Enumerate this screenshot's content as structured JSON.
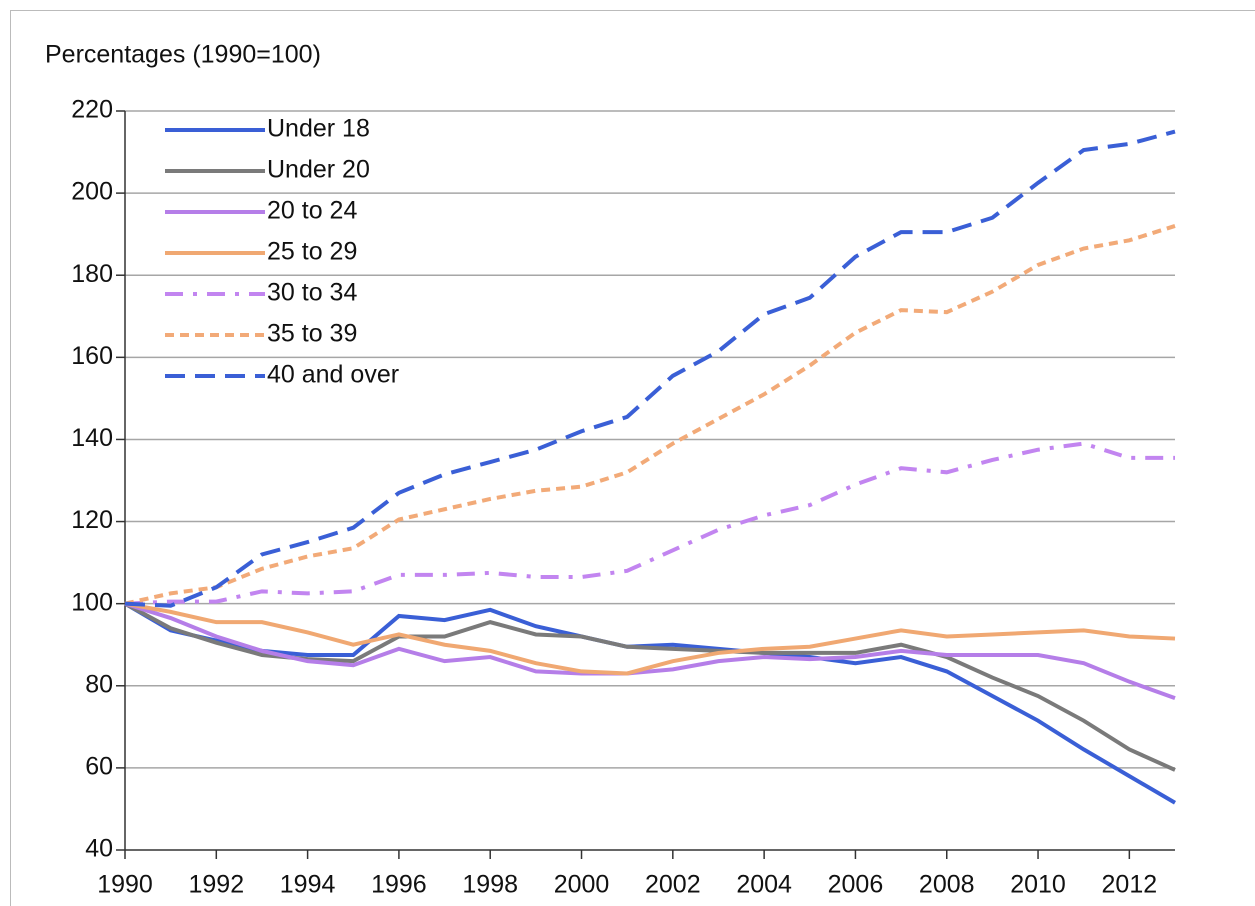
{
  "chart_data": {
    "type": "line",
    "title": "Percentages (1990=100)",
    "x": [
      1990,
      1991,
      1992,
      1993,
      1994,
      1995,
      1996,
      1997,
      1998,
      1999,
      2000,
      2001,
      2002,
      2003,
      2004,
      2005,
      2006,
      2007,
      2008,
      2009,
      2010,
      2011,
      2012,
      2013
    ],
    "xlim": [
      1990,
      2013
    ],
    "xticks": [
      1990,
      1992,
      1994,
      1996,
      1998,
      2000,
      2002,
      2004,
      2006,
      2008,
      2010,
      2012
    ],
    "ylim": [
      40,
      220
    ],
    "yticks": [
      40,
      60,
      80,
      100,
      120,
      140,
      160,
      180,
      200,
      220
    ],
    "grid": true,
    "legend": "top-left",
    "series": [
      {
        "name": "Under 18",
        "color": "#3a5fd6",
        "style": "solid",
        "values": [
          100,
          93.5,
          91,
          88.5,
          87.5,
          87.5,
          97,
          96,
          98.5,
          94.5,
          92,
          89.5,
          90,
          89,
          88,
          87,
          85.5,
          87,
          83.5,
          77.5,
          71.5,
          64.5,
          58,
          51.5
        ]
      },
      {
        "name": "Under 20",
        "color": "#7a7a7a",
        "style": "solid",
        "values": [
          100,
          94,
          90.5,
          87.5,
          86.5,
          86,
          92,
          92,
          95.5,
          92.5,
          92,
          89.5,
          89,
          88.5,
          88,
          88,
          88,
          90,
          87,
          82,
          77.5,
          71.5,
          64.5,
          59.5
        ]
      },
      {
        "name": "20 to 24",
        "color": "#b57ee8",
        "style": "solid",
        "values": [
          100,
          96.5,
          92,
          88.5,
          86,
          85,
          89,
          86,
          87,
          83.5,
          83,
          83,
          84,
          86,
          87,
          86.5,
          87,
          88.5,
          87.5,
          87.5,
          87.5,
          85.5,
          81,
          77
        ]
      },
      {
        "name": "25 to 29",
        "color": "#f0a872",
        "style": "solid",
        "values": [
          100,
          98,
          95.5,
          95.5,
          93,
          90,
          92.5,
          90,
          88.5,
          85.5,
          83.5,
          83,
          86,
          88,
          89,
          89.5,
          91.5,
          93.5,
          92,
          92.5,
          93,
          93.5,
          92,
          91.5
        ]
      },
      {
        "name": "30 to 34",
        "color": "#c285f0",
        "style": "dash-dot",
        "values": [
          100,
          100.5,
          100.5,
          103,
          102.5,
          103,
          107,
          107,
          107.5,
          106.5,
          106.5,
          108,
          113,
          118,
          121.5,
          124,
          129,
          133,
          132,
          135,
          137.5,
          139,
          135.5,
          135.5
        ]
      },
      {
        "name": "35 to 39",
        "color": "#f2aa78",
        "style": "dashed",
        "values": [
          100,
          102.5,
          104,
          108.5,
          111.5,
          113.5,
          120.5,
          123,
          125.5,
          127.5,
          128.5,
          132,
          139,
          145,
          151,
          158,
          166,
          171.5,
          171,
          176,
          182.5,
          186.5,
          188.5,
          192
        ]
      },
      {
        "name": "40 and over",
        "color": "#3a5fd6",
        "style": "long-dash",
        "values": [
          100,
          99.5,
          104,
          112,
          115,
          118.5,
          127,
          131.5,
          134.5,
          137.5,
          142,
          145.5,
          155.5,
          161.5,
          170.5,
          174.5,
          184.5,
          190.5,
          190.5,
          194,
          202.5,
          210.5,
          212,
          215
        ]
      }
    ]
  }
}
